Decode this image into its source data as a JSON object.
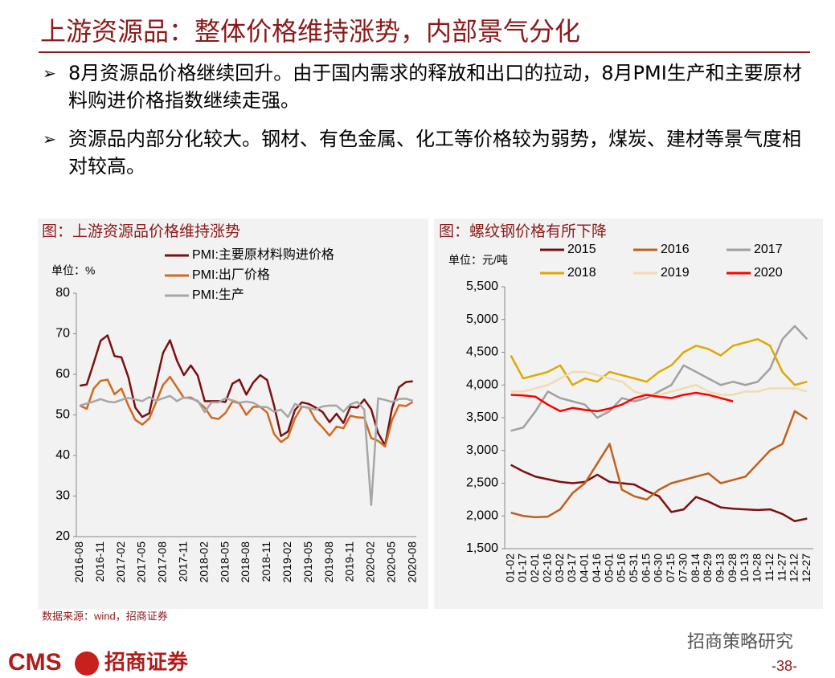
{
  "header": {
    "title": "上游资源品：整体价格维持涨势，内部景气分化"
  },
  "bullets": [
    "8月资源品价格继续回升。由于国内需求的释放和出口的拉动，8月PMI生产和主要原材料购进价格指数继续走强。",
    "资源品内部分化较大。钢材、有色金属、化工等价格较为弱势，煤炭、建材等景气度相对较高。"
  ],
  "chart_data": [
    {
      "type": "line",
      "title": "图：上游资源品价格维持涨势",
      "unit": "单位：%",
      "categories": [
        "2016-08",
        null,
        null,
        "2016-11",
        null,
        null,
        "2017-02",
        null,
        null,
        "2017-05",
        null,
        null,
        "2017-08",
        null,
        null,
        "2017-11",
        null,
        null,
        "2018-02",
        null,
        null,
        "2018-05",
        null,
        null,
        "2018-08",
        null,
        null,
        "2018-11",
        null,
        null,
        "2019-02",
        null,
        null,
        "2019-05",
        null,
        null,
        "2019-08",
        null,
        null,
        "2019-11",
        null,
        null,
        "2020-02",
        null,
        null,
        "2020-05",
        null,
        null,
        "2020-08"
      ],
      "ylim": [
        20,
        80
      ],
      "yticks": [
        20,
        30,
        40,
        50,
        60,
        70,
        80
      ],
      "series": [
        {
          "name": "PMI:主要原材料购进价格",
          "color": "#7b1010",
          "values": [
            57.2,
            57.5,
            62.8,
            68.3,
            69.6,
            64.5,
            64.2,
            59.3,
            51.8,
            49.5,
            50.4,
            57.9,
            65.3,
            68.4,
            63.4,
            59.8,
            62.2,
            59.7,
            53.4,
            53.4,
            53.4,
            53.2,
            57.7,
            58.7,
            55.0,
            58.0,
            59.8,
            58.6,
            52.3,
            44.8,
            45.9,
            51.2,
            53.1,
            52.7,
            51.8,
            50.7,
            48.2,
            50.3,
            48.0,
            52.0,
            51.8,
            53.8,
            51.4,
            45.5,
            42.5,
            51.6,
            56.8,
            58.1,
            58.3
          ]
        },
        {
          "name": "PMI:出厂价格",
          "color": "#d06a20",
          "values": [
            52.3,
            51.5,
            56.5,
            58.4,
            58.7,
            55.1,
            56.5,
            52.3,
            48.8,
            47.6,
            49.1,
            53.2,
            57.4,
            59.4,
            56.8,
            54.2,
            54.3,
            53.3,
            51.8,
            49.3,
            49.0,
            50.5,
            53.3,
            52.9,
            50.0,
            52.0,
            52.0,
            50.6,
            45.3,
            43.3,
            44.5,
            49.1,
            52.0,
            51.8,
            48.7,
            46.9,
            44.9,
            47.1,
            46.7,
            49.8,
            49.4,
            49.3,
            44.3,
            43.6,
            42.2,
            48.7,
            52.4,
            52.2,
            53.2
          ]
        },
        {
          "name": "PMI:生产",
          "color": "#a6a6a6",
          "values": [
            52.3,
            52.8,
            53.3,
            53.9,
            53.3,
            53.1,
            53.7,
            54.2,
            53.8,
            53.4,
            54.4,
            53.5,
            54.1,
            54.7,
            53.4,
            54.3,
            54.0,
            53.5,
            50.7,
            53.1,
            53.1,
            54.1,
            53.6,
            53.0,
            53.3,
            53.0,
            52.0,
            51.9,
            50.8,
            51.3,
            49.5,
            52.7,
            52.1,
            51.7,
            51.3,
            52.1,
            52.3,
            52.3,
            50.8,
            52.6,
            53.2,
            51.3,
            27.8,
            54.1,
            53.7,
            53.2,
            53.9,
            54.0,
            53.5
          ]
        }
      ]
    },
    {
      "type": "line",
      "title": "图：螺纹钢价格有所下降",
      "unit": "单位：元/吨",
      "categories": [
        "01-02",
        "01-17",
        "02-01",
        "02-16",
        "03-02",
        "03-17",
        "04-01",
        "04-16",
        "05-01",
        "05-16",
        "05-31",
        "06-15",
        "06-30",
        "07-15",
        "07-30",
        "08-14",
        "08-29",
        "09-13",
        "09-28",
        "10-13",
        "10-28",
        "11-12",
        "11-27",
        "12-12",
        "12-27"
      ],
      "ylim": [
        1500,
        5500
      ],
      "yticks": [
        {
          "value": 1500,
          "label": "1,500"
        },
        {
          "value": 2000,
          "label": "2,000"
        },
        {
          "value": 2500,
          "label": "2,500"
        },
        {
          "value": 3000,
          "label": "3,000"
        },
        {
          "value": 3500,
          "label": "3,500"
        },
        {
          "value": 4000,
          "label": "4,000"
        },
        {
          "value": 4500,
          "label": "4,500"
        },
        {
          "value": 5000,
          "label": "5,000"
        },
        {
          "value": 5500,
          "label": "5,500"
        }
      ],
      "series": [
        {
          "name": "2015",
          "color": "#7b1010",
          "values": [
            2780,
            2680,
            2600,
            2560,
            2520,
            2500,
            2520,
            2630,
            2520,
            2500,
            2480,
            2380,
            2300,
            2060,
            2100,
            2290,
            2220,
            2130,
            2110,
            2100,
            2090,
            2100,
            2030,
            1920,
            1960
          ]
        },
        {
          "name": "2016",
          "color": "#c0601c",
          "values": [
            2050,
            2000,
            1980,
            1990,
            2100,
            2350,
            2500,
            2800,
            3100,
            2400,
            2300,
            2250,
            2400,
            2500,
            2550,
            2600,
            2650,
            2500,
            2550,
            2600,
            2800,
            3000,
            3100,
            3600,
            3480
          ]
        },
        {
          "name": "2017",
          "color": "#a0a0a0",
          "values": [
            3300,
            3350,
            3600,
            3900,
            3800,
            3750,
            3700,
            3500,
            3600,
            3800,
            3750,
            3800,
            3900,
            4000,
            4300,
            4200,
            4100,
            4000,
            4050,
            4000,
            4050,
            4250,
            4700,
            4900,
            4700
          ]
        },
        {
          "name": "2018",
          "color": "#e0a800",
          "values": [
            4450,
            4100,
            4150,
            4200,
            4300,
            4000,
            4100,
            4050,
            4200,
            4150,
            4100,
            4050,
            4200,
            4300,
            4500,
            4600,
            4550,
            4450,
            4600,
            4650,
            4700,
            4600,
            4200,
            4000,
            4050
          ]
        },
        {
          "name": "2019",
          "color": "#f0dcb0",
          "values": [
            3900,
            3900,
            3950,
            4000,
            4100,
            4200,
            4200,
            4150,
            4100,
            4050,
            3900,
            3850,
            3850,
            3900,
            3950,
            4000,
            3900,
            3850,
            3850,
            3900,
            3900,
            3950,
            3950,
            3950,
            3900
          ]
        },
        {
          "name": "2020",
          "color": "#ff0000",
          "values": [
            3850,
            3840,
            3820,
            3700,
            3600,
            3650,
            3620,
            3600,
            3640,
            3700,
            3800,
            3850,
            3820,
            3800,
            3850,
            3880,
            3850,
            3800,
            3750,
            null,
            null,
            null,
            null,
            null,
            null
          ]
        }
      ]
    }
  ],
  "footer": {
    "source": "数据来源：wind，招商证券",
    "logo_text": "CMS",
    "logo_name": "招商证券",
    "watermark": "招商策略研究",
    "page": "-38-"
  }
}
